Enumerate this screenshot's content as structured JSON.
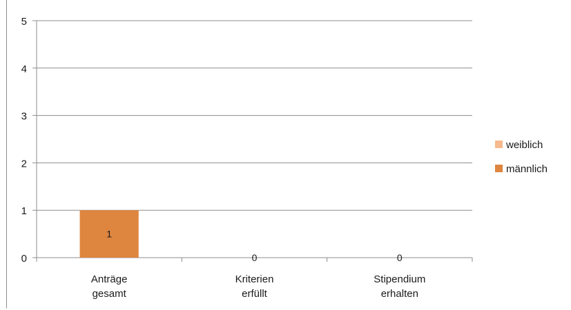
{
  "chart_data": {
    "type": "bar",
    "stacked": true,
    "categories": [
      "Anträge gesamt",
      "Kriterien erfüllt",
      "Stipendium erhalten"
    ],
    "category_lines": [
      [
        "Anträge",
        "gesamt"
      ],
      [
        "Kriterien",
        "erfüllt"
      ],
      [
        "Stipendium",
        "erhalten"
      ]
    ],
    "series": [
      {
        "name": "weiblich",
        "values": [
          0,
          0,
          0
        ],
        "color": "#f7b98d"
      },
      {
        "name": "männlich",
        "values": [
          1,
          0,
          0
        ],
        "color": "#de853f"
      }
    ],
    "totals_labels": [
      "1",
      "0",
      "0"
    ],
    "ylim": [
      0,
      5
    ],
    "yticks": [
      0,
      1,
      2,
      3,
      4,
      5
    ],
    "grid": true,
    "legend": "right",
    "title": "",
    "xlabel": "",
    "ylabel": ""
  }
}
